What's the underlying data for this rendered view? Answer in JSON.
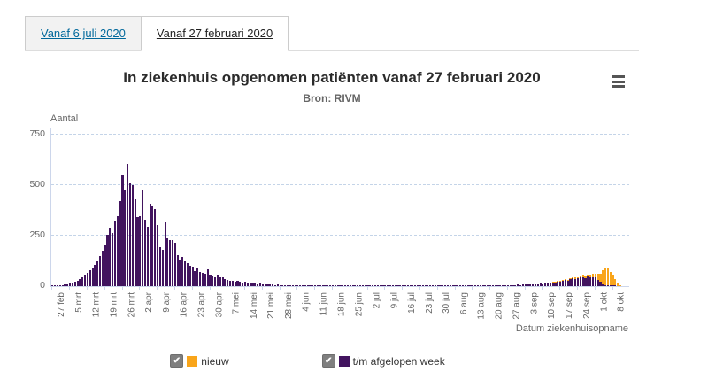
{
  "tabs": [
    {
      "label": "Vanaf 6 juli 2020",
      "active": false
    },
    {
      "label": "Vanaf 27 februari 2020",
      "active": true
    }
  ],
  "chart": {
    "title": "In ziekenhuis opgenomen patiënten vanaf 27 februari 2020",
    "subtitle": "Bron: RIVM",
    "menu_icon": "hamburger-icon",
    "y_axis": {
      "title": "Aantal",
      "ticks": [
        0,
        250,
        500,
        750
      ]
    },
    "x_axis": {
      "title": "Datum ziekenhuisopname"
    },
    "legend": [
      {
        "label": "nieuw",
        "color": "#f9a51a",
        "checked": true
      },
      {
        "label": "t/m afgelopen week",
        "color": "#42145f",
        "checked": true
      }
    ]
  },
  "chart_data": {
    "type": "bar",
    "stacked": true,
    "title": "In ziekenhuis opgenomen patiënten vanaf 27 februari 2020",
    "subtitle": "Bron: RIVM",
    "xlabel": "Datum ziekenhuisopname",
    "ylabel": "Aantal",
    "ylim": [
      0,
      780
    ],
    "grid": "dashed-horizontal",
    "legend_position": "bottom",
    "x_unit": "day",
    "n_points": 228,
    "x_tick_interval_days": 7,
    "x_tick_labels": [
      "27 feb",
      "5 mrt",
      "12 mrt",
      "19 mrt",
      "26 mrt",
      "2 apr",
      "9 apr",
      "16 apr",
      "23 apr",
      "30 apr",
      "7 mei",
      "14 mei",
      "21 mei",
      "28 mei",
      "4 jun",
      "11 jun",
      "18 jun",
      "25 jun",
      "2 jul",
      "9 jul",
      "16 jul",
      "23 jul",
      "30 jul",
      "6 aug",
      "13 aug",
      "20 aug",
      "27 aug",
      "3 sep",
      "10 sep",
      "17 sep",
      "24 sep",
      "1 okt",
      "8 okt"
    ],
    "series": [
      {
        "name": "t/m afgelopen week",
        "color": "#42145f",
        "values": [
          2,
          1,
          3,
          4,
          5,
          7,
          10,
          13,
          16,
          20,
          26,
          33,
          42,
          52,
          64,
          78,
          90,
          105,
          125,
          150,
          175,
          200,
          255,
          290,
          265,
          320,
          345,
          420,
          550,
          480,
          605,
          510,
          498,
          430,
          340,
          348,
          472,
          330,
          295,
          408,
          395,
          380,
          302,
          192,
          180,
          318,
          238,
          230,
          226,
          214,
          152,
          132,
          146,
          122,
          112,
          100,
          95,
          76,
          92,
          72,
          66,
          60,
          82,
          56,
          50,
          46,
          56,
          42,
          46,
          36,
          32,
          28,
          25,
          22,
          27,
          20,
          18,
          22,
          15,
          18,
          12,
          14,
          10,
          12,
          9,
          10,
          8,
          7,
          9,
          6,
          8,
          5,
          6,
          5,
          4,
          6,
          3,
          5,
          4,
          3,
          4,
          2,
          3,
          2,
          3,
          2,
          2,
          3,
          1,
          2,
          1,
          2,
          1,
          2,
          1,
          1,
          2,
          1,
          1,
          2,
          1,
          1,
          2,
          1,
          1,
          1,
          1,
          1,
          2,
          1,
          1,
          1,
          1,
          1,
          1,
          1,
          2,
          1,
          1,
          1,
          1,
          1,
          1,
          1,
          2,
          1,
          1,
          1,
          1,
          2,
          1,
          1,
          2,
          1,
          1,
          2,
          1,
          2,
          1,
          2,
          2,
          1,
          2,
          3,
          2,
          3,
          2,
          4,
          3,
          3,
          4,
          3,
          5,
          4,
          3,
          5,
          4,
          5,
          4,
          6,
          5,
          4,
          6,
          5,
          6,
          5,
          7,
          6,
          8,
          7,
          8,
          7,
          9,
          10,
          9,
          12,
          11,
          13,
          15,
          14,
          18,
          20,
          22,
          25,
          28,
          30,
          27,
          35,
          38,
          36,
          40,
          42,
          45,
          40,
          48,
          44,
          46,
          42,
          30,
          22,
          10,
          5,
          3,
          2,
          1,
          1,
          0,
          0
        ]
      },
      {
        "name": "nieuw",
        "color": "#f9a51a",
        "values": [
          0,
          0,
          0,
          0,
          0,
          0,
          0,
          0,
          0,
          0,
          0,
          0,
          0,
          0,
          0,
          0,
          0,
          0,
          0,
          0,
          0,
          0,
          0,
          0,
          0,
          0,
          0,
          0,
          0,
          0,
          0,
          0,
          0,
          0,
          0,
          0,
          0,
          0,
          0,
          0,
          0,
          0,
          0,
          0,
          0,
          0,
          0,
          0,
          0,
          0,
          0,
          0,
          0,
          0,
          0,
          0,
          0,
          0,
          0,
          0,
          0,
          0,
          0,
          0,
          0,
          0,
          0,
          0,
          0,
          0,
          0,
          0,
          0,
          0,
          0,
          0,
          0,
          0,
          0,
          0,
          0,
          0,
          0,
          0,
          0,
          0,
          0,
          0,
          0,
          0,
          0,
          0,
          0,
          0,
          0,
          0,
          0,
          0,
          0,
          0,
          0,
          0,
          0,
          0,
          0,
          0,
          0,
          0,
          0,
          0,
          0,
          0,
          0,
          0,
          0,
          0,
          0,
          0,
          0,
          0,
          0,
          0,
          0,
          0,
          0,
          0,
          0,
          0,
          0,
          0,
          0,
          0,
          0,
          0,
          0,
          0,
          0,
          0,
          0,
          0,
          0,
          0,
          0,
          0,
          0,
          0,
          0,
          0,
          0,
          0,
          0,
          0,
          0,
          0,
          0,
          0,
          0,
          0,
          0,
          0,
          0,
          0,
          0,
          0,
          0,
          0,
          0,
          0,
          0,
          0,
          0,
          0,
          0,
          0,
          0,
          0,
          0,
          0,
          0,
          0,
          0,
          0,
          0,
          0,
          0,
          0,
          0,
          0,
          0,
          0,
          0,
          0,
          0,
          0,
          0,
          0,
          0,
          0,
          0,
          0,
          2,
          2,
          3,
          3,
          3,
          4,
          4,
          5,
          5,
          6,
          6,
          6,
          8,
          8,
          10,
          12,
          15,
          20,
          30,
          40,
          70,
          85,
          90,
          65,
          48,
          30,
          15,
          5
        ]
      }
    ]
  }
}
